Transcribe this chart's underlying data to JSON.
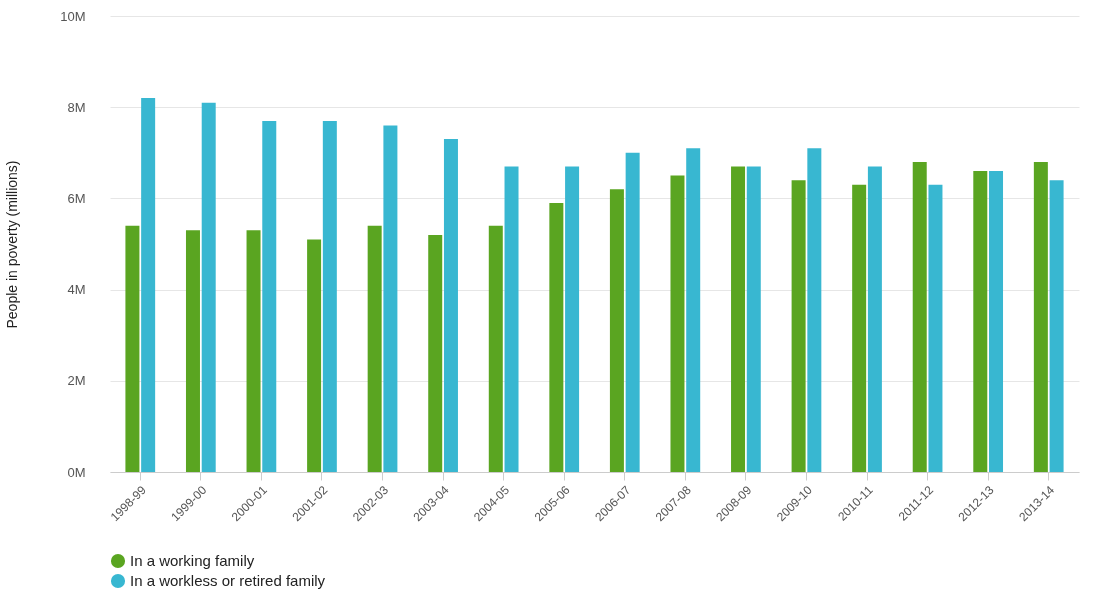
{
  "chart_data": {
    "type": "bar",
    "ylabel": "People in poverty (millions)",
    "categories": [
      "1998-99",
      "1999-00",
      "2000-01",
      "2001-02",
      "2002-03",
      "2003-04",
      "2004-05",
      "2005-06",
      "2006-07",
      "2007-08",
      "2008-09",
      "2009-10",
      "2010-11",
      "2011-12",
      "2012-13",
      "2013-14"
    ],
    "series": [
      {
        "name": "In a working family",
        "color": "#5aa521",
        "values": [
          5.4,
          5.3,
          5.3,
          5.1,
          5.4,
          5.2,
          5.4,
          5.9,
          6.2,
          6.5,
          6.7,
          6.4,
          6.3,
          6.8,
          6.6,
          6.8
        ]
      },
      {
        "name": "In a workless or retired family",
        "color": "#38b7d1",
        "values": [
          8.2,
          8.1,
          7.7,
          7.7,
          7.6,
          7.3,
          6.7,
          6.7,
          7.0,
          7.1,
          6.7,
          7.1,
          6.7,
          6.3,
          6.6,
          6.4
        ]
      }
    ],
    "ylim": [
      0,
      10
    ],
    "yticks": [
      {
        "value": 0,
        "label": "0M"
      },
      {
        "value": 2,
        "label": "2M"
      },
      {
        "value": 4,
        "label": "4M"
      },
      {
        "value": 6,
        "label": "6M"
      },
      {
        "value": 8,
        "label": "8M"
      },
      {
        "value": 10,
        "label": "10M"
      }
    ],
    "grid": "y",
    "legend": "bottom"
  }
}
